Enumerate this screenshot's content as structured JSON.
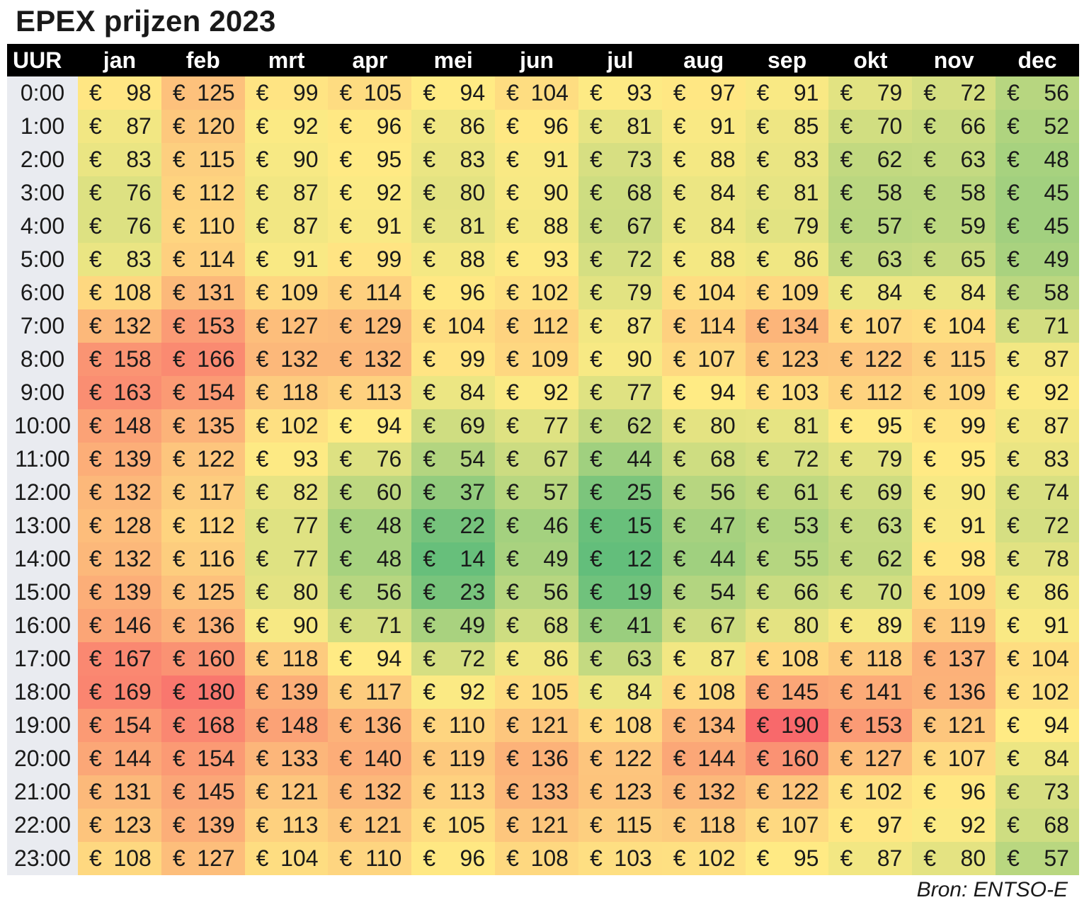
{
  "title": "EPEX prijzen 2023",
  "source": "Bron: ENTSO-E",
  "colors": {
    "low": "#63be7b",
    "mid": "#ffeb84",
    "high": "#f8696b",
    "header_bg": "#000000",
    "hour_bg": "#e9ebf0"
  },
  "chart_data": {
    "type": "heatmap",
    "title": "EPEX prijzen 2023",
    "row_header": "UUR",
    "currency_symbol": "€",
    "columns": [
      "jan",
      "feb",
      "mrt",
      "apr",
      "mei",
      "jun",
      "jul",
      "aug",
      "sep",
      "okt",
      "nov",
      "dec"
    ],
    "rows": [
      "0:00",
      "1:00",
      "2:00",
      "3:00",
      "4:00",
      "5:00",
      "6:00",
      "7:00",
      "8:00",
      "9:00",
      "10:00",
      "11:00",
      "12:00",
      "13:00",
      "14:00",
      "15:00",
      "16:00",
      "17:00",
      "18:00",
      "19:00",
      "20:00",
      "21:00",
      "22:00",
      "23:00"
    ],
    "values": [
      [
        98,
        125,
        99,
        105,
        94,
        104,
        93,
        97,
        91,
        79,
        72,
        56
      ],
      [
        87,
        120,
        92,
        96,
        86,
        96,
        81,
        91,
        85,
        70,
        66,
        52
      ],
      [
        83,
        115,
        90,
        95,
        83,
        91,
        73,
        88,
        83,
        62,
        63,
        48
      ],
      [
        76,
        112,
        87,
        92,
        80,
        90,
        68,
        84,
        81,
        58,
        58,
        45
      ],
      [
        76,
        110,
        87,
        91,
        81,
        88,
        67,
        84,
        79,
        57,
        59,
        45
      ],
      [
        83,
        114,
        91,
        99,
        88,
        93,
        72,
        88,
        86,
        63,
        65,
        49
      ],
      [
        108,
        131,
        109,
        114,
        96,
        102,
        79,
        104,
        109,
        84,
        84,
        58
      ],
      [
        132,
        153,
        127,
        129,
        104,
        112,
        87,
        114,
        134,
        107,
        104,
        71
      ],
      [
        158,
        166,
        132,
        132,
        99,
        109,
        90,
        107,
        123,
        122,
        115,
        87
      ],
      [
        163,
        154,
        118,
        113,
        84,
        92,
        77,
        94,
        103,
        112,
        109,
        92
      ],
      [
        148,
        135,
        102,
        94,
        69,
        77,
        62,
        80,
        81,
        95,
        99,
        87
      ],
      [
        139,
        122,
        93,
        76,
        54,
        67,
        44,
        68,
        72,
        79,
        95,
        83
      ],
      [
        132,
        117,
        82,
        60,
        37,
        57,
        25,
        56,
        61,
        69,
        90,
        74
      ],
      [
        128,
        112,
        77,
        48,
        22,
        46,
        15,
        47,
        53,
        63,
        91,
        72
      ],
      [
        132,
        116,
        77,
        48,
        14,
        49,
        12,
        44,
        55,
        62,
        98,
        78
      ],
      [
        139,
        125,
        80,
        56,
        23,
        56,
        19,
        54,
        66,
        70,
        109,
        86
      ],
      [
        146,
        136,
        90,
        71,
        49,
        68,
        41,
        67,
        80,
        89,
        119,
        91
      ],
      [
        167,
        160,
        118,
        94,
        72,
        86,
        63,
        87,
        108,
        118,
        137,
        104
      ],
      [
        169,
        180,
        139,
        117,
        92,
        105,
        84,
        108,
        145,
        141,
        136,
        102
      ],
      [
        154,
        168,
        148,
        136,
        110,
        121,
        108,
        134,
        190,
        153,
        121,
        94
      ],
      [
        144,
        154,
        133,
        140,
        119,
        136,
        122,
        144,
        160,
        127,
        107,
        84
      ],
      [
        131,
        145,
        121,
        132,
        113,
        133,
        123,
        132,
        122,
        102,
        96,
        73
      ],
      [
        123,
        139,
        113,
        121,
        105,
        121,
        115,
        118,
        107,
        97,
        92,
        68
      ],
      [
        108,
        127,
        104,
        110,
        96,
        108,
        103,
        102,
        95,
        87,
        80,
        57
      ]
    ]
  }
}
